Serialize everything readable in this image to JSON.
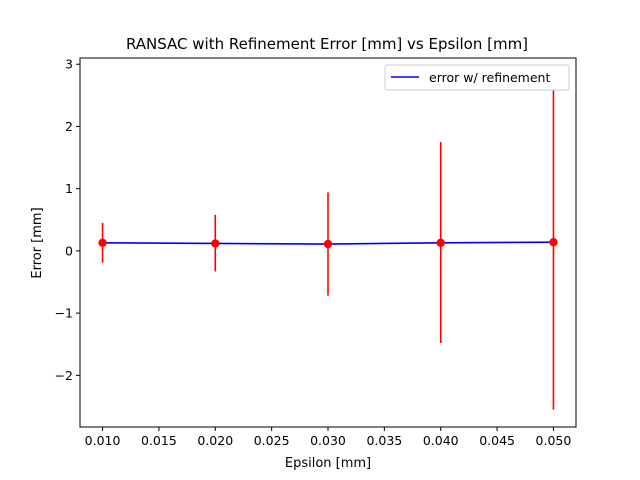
{
  "chart_data": {
    "type": "line",
    "title": "RANSAC with Refinement Error [mm] vs Epsilon [mm]",
    "xlabel": "Epsilon [mm]",
    "ylabel": "Error [mm]",
    "xlim": [
      0.008,
      0.052
    ],
    "ylim": [
      -2.83,
      3.1
    ],
    "xticks": [
      "0.010",
      "0.015",
      "0.020",
      "0.025",
      "0.030",
      "0.035",
      "0.040",
      "0.045",
      "0.050"
    ],
    "xtick_values": [
      0.01,
      0.015,
      0.02,
      0.025,
      0.03,
      0.035,
      0.04,
      0.045,
      0.05
    ],
    "yticks": [
      "−2",
      "−1",
      "0",
      "1",
      "2",
      "3"
    ],
    "ytick_values": [
      -2,
      -1,
      0,
      1,
      2,
      3
    ],
    "grid": false,
    "legend_position": "top-right",
    "series": [
      {
        "name": "error w/ refinement",
        "color": "#0000ff",
        "x": [
          0.01,
          0.02,
          0.03,
          0.04,
          0.05
        ],
        "y": [
          0.13,
          0.12,
          0.11,
          0.13,
          0.14
        ],
        "error_lower": [
          -0.19,
          -0.33,
          -0.72,
          -1.48,
          -2.55
        ],
        "error_upper": [
          0.45,
          0.58,
          0.94,
          1.75,
          2.82
        ],
        "marker_color": "#ff0000",
        "errorbar_color": "#ff0000"
      }
    ]
  }
}
